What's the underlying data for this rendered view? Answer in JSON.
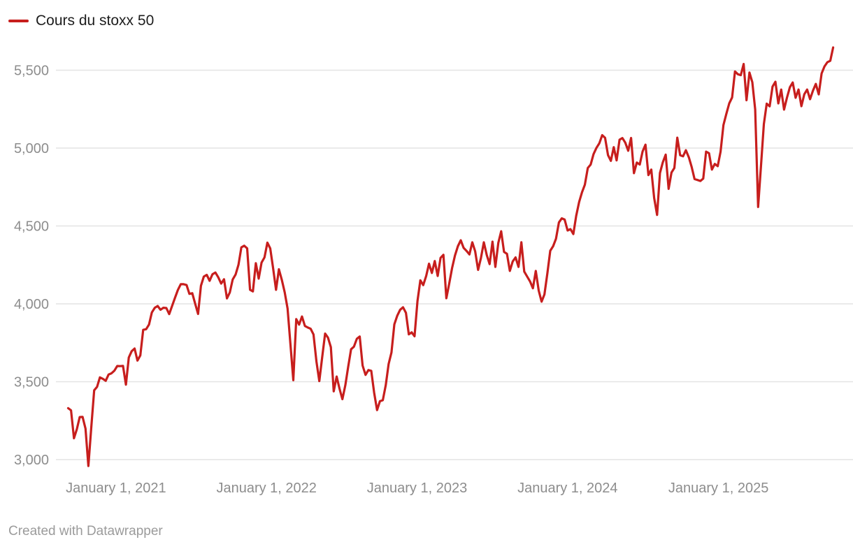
{
  "legend": {
    "label": "Cours du stoxx 50",
    "swatch_color": "#c71e1d"
  },
  "footer": {
    "text": "Created with Datawrapper"
  },
  "colors": {
    "line": "#c71e1d",
    "grid": "#e4e4e4",
    "tick_text": "#8d8d8d",
    "legend_text": "#1d1d1d",
    "footer_text": "#9b9b9b",
    "background": "#ffffff"
  },
  "chart_data": {
    "type": "line",
    "title": "",
    "legend_entries": [
      "Cours du stoxx 50"
    ],
    "legend_position": "top-left",
    "grid": "horizontal",
    "ylim": [
      2950,
      5700
    ],
    "y_axis": {
      "ticks": [
        {
          "value": 3000,
          "label": "3,000"
        },
        {
          "value": 3500,
          "label": "3,500"
        },
        {
          "value": 4000,
          "label": "4,000"
        },
        {
          "value": 4500,
          "label": "4,500"
        },
        {
          "value": 5000,
          "label": "5,000"
        },
        {
          "value": 5500,
          "label": "5,500"
        }
      ]
    },
    "x_axis": {
      "ticks": [
        {
          "date": "2021-01-01",
          "label": "January 1, 2021"
        },
        {
          "date": "2022-01-01",
          "label": "January 1, 2022"
        },
        {
          "date": "2023-01-01",
          "label": "January 1, 2023"
        },
        {
          "date": "2024-01-01",
          "label": "January 1, 2024"
        },
        {
          "date": "2025-01-01",
          "label": "January 1, 2025"
        }
      ]
    },
    "series": [
      {
        "name": "Cours du stoxx 50",
        "color": "#c71e1d",
        "start_date": "2020-09-07",
        "step_days": 7,
        "unit": "index points",
        "values": [
          3330,
          3316,
          3137,
          3195,
          3273,
          3274,
          3199,
          2959,
          3204,
          3445,
          3467,
          3528,
          3519,
          3506,
          3546,
          3554,
          3571,
          3601,
          3600,
          3602,
          3481,
          3655,
          3696,
          3713,
          3636,
          3669,
          3833,
          3837,
          3867,
          3945,
          3975,
          3986,
          3962,
          3975,
          3973,
          3934,
          3986,
          4039,
          4089,
          4126,
          4126,
          4121,
          4064,
          4068,
          4000,
          3935,
          4116,
          4175,
          4186,
          4148,
          4190,
          4201,
          4170,
          4130,
          4158,
          4035,
          4073,
          4156,
          4189,
          4251,
          4363,
          4373,
          4356,
          4090,
          4080,
          4261,
          4162,
          4265,
          4298,
          4393,
          4356,
          4229,
          4090,
          4222,
          4155,
          4074,
          3970,
          3741,
          3510,
          3902,
          3867,
          3919,
          3858,
          3848,
          3840,
          3803,
          3629,
          3504,
          3657,
          3809,
          3783,
          3722,
          3438,
          3533,
          3455,
          3388,
          3477,
          3596,
          3708,
          3725,
          3776,
          3790,
          3604,
          3544,
          3575,
          3570,
          3430,
          3318,
          3375,
          3381,
          3477,
          3613,
          3688,
          3868,
          3924,
          3962,
          3978,
          3942,
          3804,
          3817,
          3792,
          4018,
          4151,
          4120,
          4178,
          4258,
          4198,
          4275,
          4179,
          4295,
          4315,
          4036,
          4130,
          4230,
          4310,
          4370,
          4408,
          4359,
          4340,
          4317,
          4395,
          4337,
          4218,
          4295,
          4395,
          4313,
          4255,
          4399,
          4237,
          4391,
          4466,
          4333,
          4321,
          4211,
          4272,
          4298,
          4237,
          4395,
          4207,
          4175,
          4144,
          4100,
          4211,
          4085,
          4014,
          4061,
          4197,
          4341,
          4370,
          4418,
          4523,
          4549,
          4541,
          4471,
          4480,
          4448,
          4565,
          4654,
          4716,
          4765,
          4872,
          4894,
          4961,
          5001,
          5031,
          5083,
          5066,
          4955,
          4918,
          5006,
          4921,
          5054,
          5064,
          5035,
          4983,
          5065,
          4839,
          4907,
          4894,
          4979,
          5022,
          4827,
          4862,
          4680,
          4571,
          4840,
          4909,
          4958,
          4738,
          4843,
          4872,
          5067,
          4954,
          4947,
          4986,
          4941,
          4878,
          4801,
          4795,
          4789,
          4804,
          4977,
          4967,
          4862,
          4898,
          4884,
          4977,
          5148,
          5219,
          5287,
          5325,
          5492,
          5474,
          5468,
          5540,
          5307,
          5485,
          5423,
          5248,
          4622,
          4885,
          5154,
          5285,
          5268,
          5394,
          5426,
          5287,
          5376,
          5247,
          5323,
          5390,
          5421,
          5323,
          5376,
          5269,
          5345,
          5376,
          5314,
          5368,
          5412,
          5345,
          5479,
          5524,
          5551,
          5560,
          5646
        ]
      }
    ]
  }
}
